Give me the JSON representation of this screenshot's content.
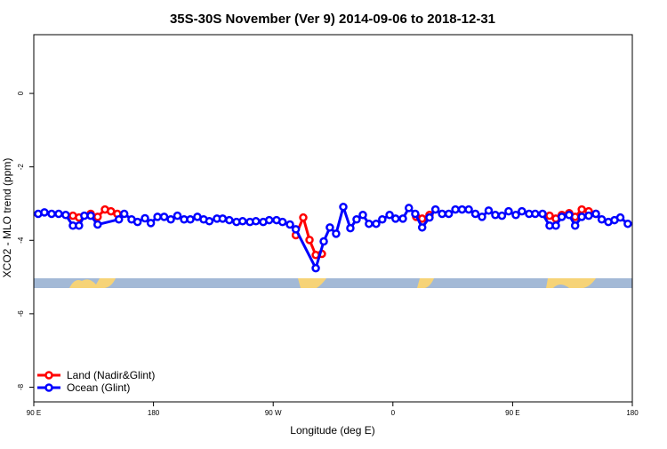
{
  "chart_data": {
    "type": "line",
    "title": "35S-30S November (Ver 9)   2014-09-06 to 2018-12-31",
    "x_label": "Longitude (deg E)",
    "y_label": "XCO2 - MLO trend (ppm)",
    "xlim": [
      90,
      540
    ],
    "ylim": [
      -8.4,
      1.6
    ],
    "xticks": [
      {
        "value": 90,
        "label": "90 E"
      },
      {
        "value": 180,
        "label": "180"
      },
      {
        "value": 270,
        "label": "90 W"
      },
      {
        "value": 360,
        "label": "0"
      },
      {
        "value": 450,
        "label": "90 E"
      },
      {
        "value": 540,
        "label": "180"
      }
    ],
    "yticks": [
      0,
      -2,
      -4,
      -6,
      -8
    ],
    "legend": "bottom-left",
    "series": [
      {
        "name": "Land (Nadir&Glint)",
        "color": "#ff0000",
        "x": [
          119.4,
          124,
          132.8,
          138,
          143.5,
          148,
          152.8,
          null,
          287,
          292.6,
          297.3,
          302,
          306.6,
          null,
          377.5,
          382,
          387.5,
          null,
          477.8,
          482.5,
          487,
          492.5,
          497,
          502,
          507.2,
          512.6
        ],
        "values": [
          -3.33,
          -3.38,
          -3.28,
          -3.36,
          -3.16,
          -3.21,
          -3.28,
          null,
          -3.86,
          -3.38,
          -3.99,
          -4.4,
          -4.37,
          null,
          -3.36,
          -3.41,
          -3.31,
          null,
          -3.33,
          -3.41,
          -3.31,
          -3.26,
          -3.36,
          -3.16,
          -3.21,
          -3.28
        ]
      },
      {
        "name": "Ocean (Glint)",
        "color": "#0000ff",
        "x": [
          93.3,
          98,
          103.4,
          108.7,
          114,
          119.4,
          124,
          128,
          132.8,
          138,
          154,
          158,
          163.5,
          168,
          173.6,
          178,
          183,
          188,
          193,
          198,
          203,
          207.7,
          213,
          217.7,
          222,
          227.7,
          232,
          237,
          242.4,
          247,
          252.5,
          257,
          262.5,
          267,
          272.5,
          277,
          282.6,
          287,
          302,
          308,
          312.6,
          317.3,
          322.7,
          328,
          332.7,
          337.4,
          342,
          347.4,
          352,
          357.5,
          362,
          367.5,
          372,
          376.8,
          382,
          387.5,
          392,
          397,
          402,
          407,
          412,
          417,
          422,
          427,
          432,
          437,
          442,
          447,
          452.4,
          457,
          462.4,
          467,
          472.5,
          477.8,
          482.5,
          487,
          492.5,
          497,
          502,
          507.2,
          512.6,
          517,
          522,
          526.6,
          531,
          536.6
        ],
        "values": [
          -3.28,
          -3.24,
          -3.28,
          -3.28,
          -3.31,
          -3.6,
          -3.6,
          -3.33,
          -3.33,
          -3.57,
          -3.43,
          -3.28,
          -3.43,
          -3.5,
          -3.4,
          -3.53,
          -3.36,
          -3.36,
          -3.43,
          -3.33,
          -3.43,
          -3.43,
          -3.36,
          -3.43,
          -3.48,
          -3.41,
          -3.41,
          -3.45,
          -3.5,
          -3.48,
          -3.5,
          -3.48,
          -3.5,
          -3.45,
          -3.45,
          -3.5,
          -3.57,
          -3.7,
          -4.76,
          -4.03,
          -3.65,
          -3.82,
          -3.09,
          -3.67,
          -3.43,
          -3.31,
          -3.55,
          -3.55,
          -3.43,
          -3.31,
          -3.41,
          -3.41,
          -3.12,
          -3.28,
          -3.65,
          -3.38,
          -3.16,
          -3.28,
          -3.28,
          -3.16,
          -3.16,
          -3.16,
          -3.28,
          -3.36,
          -3.19,
          -3.31,
          -3.33,
          -3.21,
          -3.31,
          -3.21,
          -3.28,
          -3.28,
          -3.28,
          -3.6,
          -3.6,
          -3.36,
          -3.31,
          -3.6,
          -3.36,
          -3.33,
          -3.28,
          -3.43,
          -3.5,
          -3.45,
          -3.38,
          -3.55
        ]
      }
    ]
  }
}
